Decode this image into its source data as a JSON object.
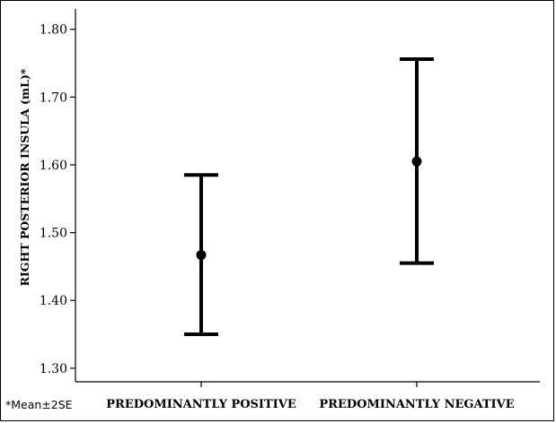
{
  "chart_data": {
    "type": "errorbar",
    "ylabel": "RIGHT POSTERIOR INSULA (mL)*",
    "xlabel": "",
    "title": "",
    "ylim": [
      1.28,
      1.83
    ],
    "yticks": [
      1.3,
      1.4,
      1.5,
      1.6,
      1.7,
      1.8
    ],
    "ytick_labels": [
      "1.30",
      "1.40",
      "1.50",
      "1.60",
      "1.70",
      "1.80"
    ],
    "categories": [
      "PREDOMINANTLY POSITIVE",
      "PREDOMINANTLY NEGATIVE"
    ],
    "series": [
      {
        "mean": [
          1.467,
          1.605
        ],
        "lower": [
          1.35,
          1.455
        ],
        "upper": [
          1.585,
          1.756
        ]
      }
    ],
    "grid": false,
    "footnote": "*Mean±2SE"
  }
}
